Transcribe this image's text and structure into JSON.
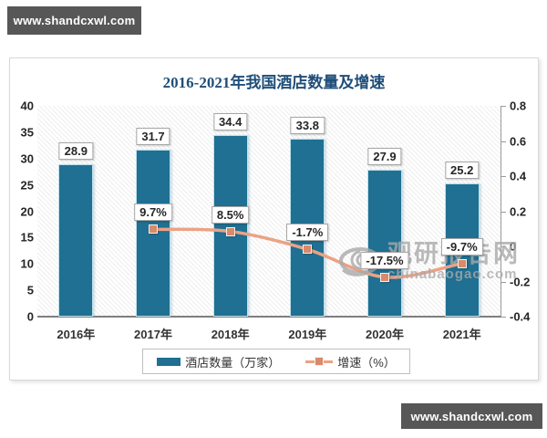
{
  "banner_top": {
    "text": "www.shandcxwl.com"
  },
  "banner_bottom": {
    "text": "www.shandcxwl.com"
  },
  "watermark": {
    "logo_icon": "eye-swirl-icon",
    "cn": "观研报告网",
    "en": "chinabaogao.com"
  },
  "chart_data": {
    "type": "bar+line combo",
    "title": "2016-2021年我国酒店数量及增速",
    "categories": [
      "2016年",
      "2017年",
      "2018年",
      "2019年",
      "2020年",
      "2021年"
    ],
    "series": [
      {
        "name": "酒店数量（万家）",
        "type": "bar",
        "axis": "left",
        "values": [
          28.9,
          31.7,
          34.4,
          33.8,
          27.9,
          25.2
        ],
        "labels": [
          "28.9",
          "31.7",
          "34.4",
          "33.8",
          "27.9",
          "25.2"
        ],
        "color": "#1f7092"
      },
      {
        "name": "增速（%）",
        "type": "line",
        "axis": "right",
        "values": [
          null,
          0.097,
          0.085,
          -0.017,
          -0.175,
          -0.097
        ],
        "labels": [
          null,
          "9.7%",
          "8.5%",
          "-1.7%",
          "-17.5%",
          "-9.7%"
        ],
        "color": "#eba285",
        "marker_color": "#d98a6a"
      }
    ],
    "left_axis": {
      "min": 0,
      "max": 40,
      "step": 5,
      "ticks": [
        "40",
        "35",
        "30",
        "25",
        "20",
        "15",
        "10",
        "5",
        "0"
      ]
    },
    "right_axis": {
      "min": -0.4,
      "max": 0.8,
      "step": 0.2,
      "ticks": [
        "0.8",
        "0.6",
        "0.4",
        "0.2",
        "0",
        "-0.2",
        "-0.4"
      ]
    },
    "legend_position": "bottom",
    "grid": "hatched plot background, no gridlines",
    "title_color": "#1f4e79"
  }
}
